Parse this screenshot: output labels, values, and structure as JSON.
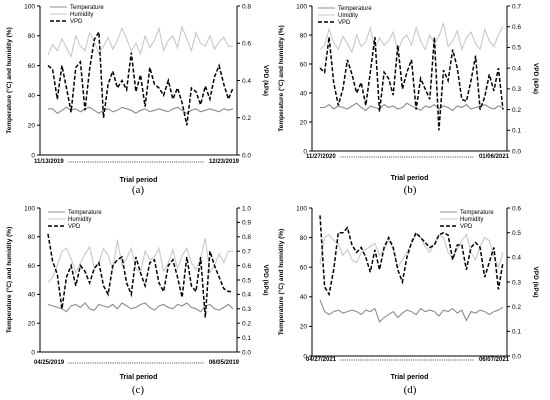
{
  "chart_data": [
    {
      "panel": "(a)",
      "type": "line",
      "xlabel": "Trial period",
      "ylabel_left": "Temperature (°C) and humidity (%)",
      "ylabel_right": "VPD (kPa)",
      "start_date": "11/13/2019",
      "end_date": "12/23/2019",
      "ylim_left": [
        0,
        100
      ],
      "ylim_right": [
        0,
        0.8
      ],
      "yticks_left": [
        "0",
        "20",
        "40",
        "60",
        "80",
        "100"
      ],
      "yticks_right": [
        "0.0",
        "0.2",
        "0.4",
        "0.6",
        "0.8"
      ],
      "legend": [
        "Temperature",
        "Humidity",
        "VPD"
      ],
      "series": [
        {
          "name": "Temperature",
          "axis": "left",
          "color": "#8c8c8c",
          "style": "solid",
          "values": [
            31,
            31,
            28,
            30,
            32,
            30,
            31,
            29,
            31,
            32,
            30,
            28,
            30,
            31,
            29,
            30,
            32,
            31,
            30,
            28,
            30,
            31,
            29,
            30,
            31,
            30,
            29,
            31,
            32,
            30,
            28,
            30,
            31,
            29,
            30,
            31,
            30,
            29,
            31,
            30,
            31
          ]
        },
        {
          "name": "Humidity",
          "axis": "left",
          "color": "#c8c8c8",
          "style": "solid",
          "values": [
            67,
            74,
            70,
            78,
            72,
            66,
            80,
            73,
            70,
            82,
            76,
            68,
            73,
            79,
            71,
            77,
            85,
            78,
            70,
            75,
            68,
            80,
            72,
            77,
            85,
            70,
            77,
            80,
            72,
            86,
            78,
            70,
            82,
            75,
            73,
            80,
            71,
            76,
            79,
            73,
            73
          ]
        },
        {
          "name": "VPD",
          "axis": "right",
          "color": "#000000",
          "style": "dashed",
          "values": [
            0.48,
            0.46,
            0.3,
            0.48,
            0.36,
            0.23,
            0.47,
            0.5,
            0.24,
            0.46,
            0.62,
            0.66,
            0.2,
            0.38,
            0.45,
            0.36,
            0.4,
            0.35,
            0.55,
            0.34,
            0.43,
            0.26,
            0.47,
            0.38,
            0.36,
            0.32,
            0.4,
            0.3,
            0.36,
            0.28,
            0.16,
            0.36,
            0.34,
            0.27,
            0.37,
            0.3,
            0.42,
            0.48,
            0.38,
            0.3,
            0.36
          ]
        }
      ]
    },
    {
      "panel": "(b)",
      "type": "line",
      "xlabel": "Trial period",
      "ylabel_left": "Temperature (°C) and humidity (%)",
      "ylabel_right": "VPD (kPa)",
      "start_date": "11/27/2020",
      "end_date": "01/06/2021",
      "ylim_left": [
        0,
        100
      ],
      "ylim_right": [
        0,
        0.7
      ],
      "yticks_left": [
        "0",
        "20",
        "40",
        "60",
        "80",
        "100"
      ],
      "yticks_right": [
        "0.0",
        "0.1",
        "0.2",
        "0.3",
        "0.4",
        "0.5",
        "0.6",
        "0.7"
      ],
      "legend": [
        "Temperature",
        "Umidity",
        "VPD"
      ],
      "series": [
        {
          "name": "Temperature",
          "axis": "left",
          "color": "#8c8c8c",
          "style": "solid",
          "values": [
            30,
            30,
            32,
            29,
            31,
            30,
            29,
            31,
            33,
            30,
            28,
            31,
            30,
            29,
            32,
            30,
            31,
            29,
            30,
            33,
            31,
            30,
            28,
            31,
            30,
            32,
            29,
            31,
            30,
            28,
            31,
            30,
            32,
            29,
            30,
            31,
            32,
            30,
            29,
            31,
            30
          ]
        },
        {
          "name": "Umidity",
          "axis": "left",
          "color": "#c8c8c8",
          "style": "solid",
          "values": [
            70,
            73,
            84,
            75,
            70,
            79,
            74,
            68,
            80,
            72,
            75,
            85,
            70,
            78,
            73,
            76,
            82,
            69,
            77,
            80,
            73,
            85,
            76,
            70,
            80,
            74,
            79,
            88,
            72,
            76,
            83,
            70,
            78,
            82,
            74,
            70,
            84,
            76,
            72,
            80,
            86
          ]
        },
        {
          "name": "VPD",
          "axis": "right",
          "color": "#000000",
          "style": "dashed",
          "values": [
            0.4,
            0.38,
            0.55,
            0.33,
            0.22,
            0.3,
            0.44,
            0.37,
            0.28,
            0.33,
            0.22,
            0.38,
            0.55,
            0.19,
            0.38,
            0.35,
            0.27,
            0.51,
            0.3,
            0.38,
            0.44,
            0.2,
            0.35,
            0.3,
            0.25,
            0.55,
            0.1,
            0.39,
            0.34,
            0.49,
            0.4,
            0.25,
            0.24,
            0.34,
            0.46,
            0.2,
            0.26,
            0.37,
            0.29,
            0.4,
            0.2
          ]
        }
      ]
    },
    {
      "panel": "(c)",
      "type": "line",
      "xlabel": "Trial period",
      "ylabel_left": "Temperature (°C) and humidity (%)",
      "ylabel_right": "VPD (kPa)",
      "start_date": "04/25/2019",
      "end_date": "06/05/2019",
      "ylim_left": [
        0,
        100
      ],
      "ylim_right": [
        0,
        1.0
      ],
      "yticks_left": [
        "0",
        "20",
        "40",
        "60",
        "80",
        "100"
      ],
      "yticks_right": [
        "0.0",
        "0.1",
        "0.2",
        "0.3",
        "0.4",
        "0.5",
        "0.6",
        "0.7",
        "0.8",
        "0.9",
        "1.0"
      ],
      "legend": [
        "Temperature",
        "Humidity",
        "VPD"
      ],
      "series": [
        {
          "name": "Temperature",
          "axis": "left",
          "color": "#8c8c8c",
          "style": "solid",
          "values": [
            33,
            32,
            31,
            30,
            28,
            32,
            33,
            31,
            34,
            30,
            29,
            33,
            32,
            31,
            33,
            30,
            34,
            32,
            30,
            31,
            33,
            34,
            31,
            29,
            32,
            33,
            31,
            30,
            33,
            32,
            34,
            31,
            30,
            28,
            32,
            33,
            30,
            29,
            31,
            33,
            30
          ]
        },
        {
          "name": "Humidity",
          "axis": "left",
          "color": "#c8c8c8",
          "style": "solid",
          "values": [
            48,
            52,
            60,
            70,
            72,
            65,
            55,
            62,
            68,
            73,
            58,
            62,
            72,
            67,
            57,
            78,
            60,
            65,
            72,
            58,
            55,
            70,
            64,
            66,
            72,
            56,
            62,
            71,
            58,
            67,
            72,
            62,
            57,
            65,
            79,
            55,
            60,
            68,
            62,
            70,
            70
          ]
        },
        {
          "name": "VPD",
          "axis": "right",
          "color": "#000000",
          "style": "dashed",
          "values": [
            0.82,
            0.63,
            0.54,
            0.3,
            0.52,
            0.6,
            0.46,
            0.6,
            0.56,
            0.48,
            0.58,
            0.62,
            0.46,
            0.4,
            0.6,
            0.64,
            0.66,
            0.48,
            0.4,
            0.66,
            0.55,
            0.46,
            0.62,
            0.64,
            0.48,
            0.42,
            0.6,
            0.64,
            0.52,
            0.38,
            0.66,
            0.46,
            0.42,
            0.66,
            0.24,
            0.7,
            0.6,
            0.52,
            0.44,
            0.42,
            0.42
          ]
        }
      ]
    },
    {
      "panel": "(d)",
      "type": "line",
      "xlabel": "Trial period",
      "ylabel_left": "Temperature (°C) and humidity (%)",
      "ylabel_right": "VPD (kPa)",
      "start_date": "04/27/2021",
      "end_date": "06/07/2021",
      "ylim_left": [
        0,
        100
      ],
      "ylim_right": [
        0,
        0.6
      ],
      "yticks_left": [
        "0",
        "20",
        "40",
        "60",
        "80",
        "100"
      ],
      "yticks_right": [
        "0.0",
        "0.1",
        "0.2",
        "0.3",
        "0.4",
        "0.5",
        "0.6"
      ],
      "legend": [
        "Temperature",
        "Humidity",
        "VPD"
      ],
      "series": [
        {
          "name": "Temperature",
          "axis": "left",
          "color": "#8c8c8c",
          "style": "solid",
          "values": [
            38,
            30,
            28,
            30,
            31,
            29,
            30,
            31,
            30,
            28,
            31,
            30,
            32,
            23,
            26,
            28,
            30,
            26,
            29,
            31,
            30,
            28,
            32,
            30,
            31,
            30,
            27,
            31,
            30,
            32,
            29,
            31,
            24,
            30,
            29,
            31,
            30,
            28,
            30,
            31,
            33
          ]
        },
        {
          "name": "Humidity",
          "axis": "left",
          "color": "#c8c8c8",
          "style": "solid",
          "values": [
            62,
            80,
            82,
            78,
            76,
            68,
            72,
            65,
            63,
            70,
            72,
            74,
            76,
            68,
            72,
            78,
            72,
            60,
            65,
            70,
            76,
            82,
            80,
            74,
            70,
            76,
            82,
            80,
            70,
            66,
            72,
            78,
            82,
            70,
            65,
            74,
            80,
            78,
            67,
            60,
            70
          ]
        },
        {
          "name": "VPD",
          "axis": "right",
          "color": "#000000",
          "style": "dashed",
          "values": [
            0.57,
            0.28,
            0.25,
            0.35,
            0.5,
            0.5,
            0.52,
            0.45,
            0.42,
            0.44,
            0.4,
            0.34,
            0.43,
            0.35,
            0.44,
            0.48,
            0.44,
            0.35,
            0.3,
            0.4,
            0.46,
            0.5,
            0.48,
            0.46,
            0.44,
            0.45,
            0.49,
            0.5,
            0.49,
            0.39,
            0.45,
            0.45,
            0.35,
            0.44,
            0.46,
            0.44,
            0.32,
            0.38,
            0.44,
            0.27,
            0.38
          ]
        }
      ]
    }
  ]
}
